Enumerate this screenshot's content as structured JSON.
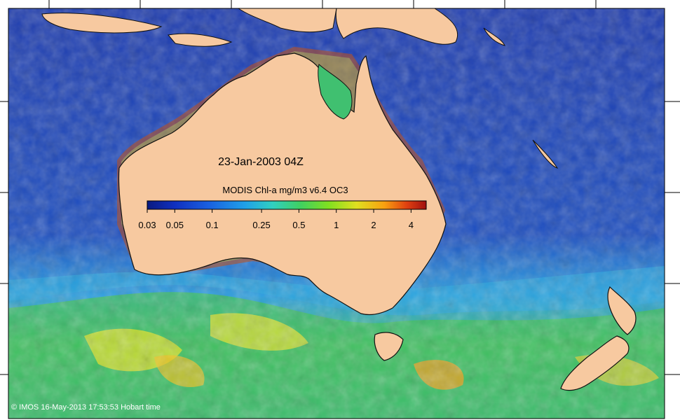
{
  "map": {
    "date_label": "23-Jan-2003 04Z",
    "product_label": "MODIS Chl-a mg/m3 v6.4 OC3",
    "credit": "© IMOS 16-May-2013 17:53:53 Hobart time",
    "colors": {
      "ocean_deep": "#1a3aa0",
      "ocean_mid": "#1e6ad0",
      "ocean_light": "#2aa6e0",
      "land": "#f7c9a0",
      "coast_high": "#c0501a",
      "frame": "#ffffff"
    }
  },
  "colorbar": {
    "ticks": [
      "0.03",
      "0.05",
      "0.1",
      "0.25",
      "0.5",
      "1",
      "2",
      "4"
    ],
    "colors": [
      "#0a1a80",
      "#1030c0",
      "#1a60e0",
      "#20a0e8",
      "#30d0c0",
      "#40d060",
      "#80e020",
      "#e0e020",
      "#f8a010",
      "#e04010",
      "#a01010"
    ]
  }
}
